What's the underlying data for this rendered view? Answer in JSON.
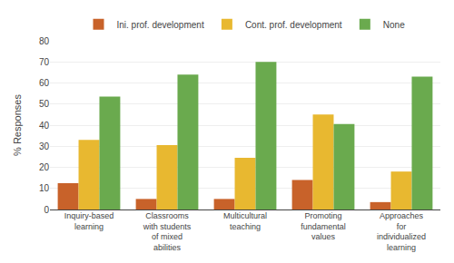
{
  "chart_data": {
    "type": "bar",
    "categories": [
      "Inquiry-based\nlearning",
      "Classrooms\nwith students\nof mixed\nabilities",
      "Multicultural\nteaching",
      "Promoting\nfundamental\nvalues",
      "Approaches\nfor\nindividualized\nlearning"
    ],
    "series": [
      {
        "name": "Ini. prof. development",
        "color": "#c8622a",
        "values": [
          12.5,
          5,
          5,
          14,
          3.5
        ]
      },
      {
        "name": "Cont. prof. development",
        "color": "#e8b830",
        "values": [
          33,
          30.5,
          24.5,
          45,
          18
        ]
      },
      {
        "name": "None",
        "color": "#6aaa4e",
        "values": [
          53.5,
          64,
          70,
          40.5,
          63
        ]
      }
    ],
    "ylabel": "% Responses",
    "ylim": [
      0,
      80
    ],
    "yticks": [
      0,
      10,
      20,
      30,
      40,
      50,
      60,
      70,
      80
    ],
    "grid": true,
    "legend": "top"
  }
}
